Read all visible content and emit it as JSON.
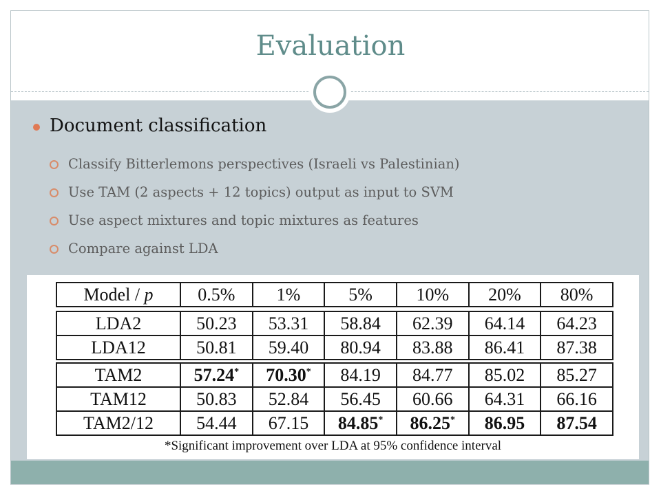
{
  "slide": {
    "title": "Evaluation",
    "main_bullet": "Document classification",
    "sub_bullets": [
      "Classify Bitterlemons perspectives (Israeli vs Palestinian)",
      "Use TAM (2 aspects + 12 topics) output as input to SVM",
      "Use aspect mixtures and topic mixtures as features",
      "Compare against LDA"
    ]
  },
  "table": {
    "header_label": "Model / ",
    "header_var": "p",
    "columns": [
      "0.5%",
      "1%",
      "5%",
      "10%",
      "20%",
      "80%"
    ],
    "lda_rows": [
      {
        "model": "LDA2",
        "values": [
          "50.23",
          "53.31",
          "58.84",
          "62.39",
          "64.14",
          "64.23"
        ]
      },
      {
        "model": "LDA12",
        "values": [
          "50.81",
          "59.40",
          "80.94",
          "83.88",
          "86.41",
          "87.38"
        ]
      }
    ],
    "tam_rows": [
      {
        "model": "TAM2",
        "values": [
          "57.24",
          "70.30",
          "84.19",
          "84.77",
          "85.02",
          "85.27"
        ]
      },
      {
        "model": "TAM12",
        "values": [
          "50.83",
          "52.84",
          "56.45",
          "60.66",
          "64.31",
          "66.16"
        ]
      },
      {
        "model": "TAM2/12",
        "values": [
          "54.44",
          "67.15",
          "84.85",
          "86.25",
          "86.95",
          "87.54"
        ]
      }
    ],
    "significance_mark": "*",
    "footnote": "*Significant improvement over LDA at 95% confidence interval"
  }
}
